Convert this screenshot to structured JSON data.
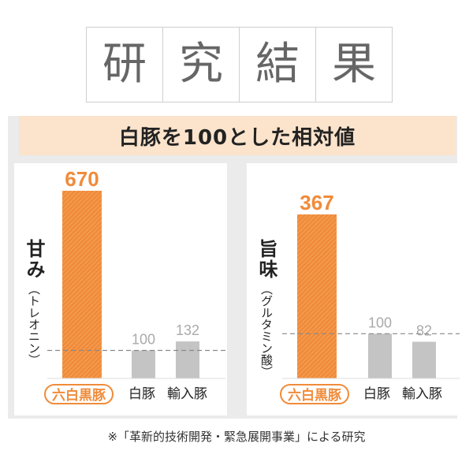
{
  "title_chars": [
    "研",
    "究",
    "結",
    "果"
  ],
  "subtitle": "白豚を100とした相対値",
  "footnote": "※「革新的技術開発・緊急展開事業」による研究",
  "colors": {
    "highlight": "#f08b3a",
    "baseline_bar": "#c4c4c4",
    "value_gray": "#aaaaaa",
    "banner_bg": "#fbe3cc"
  },
  "chart_data": [
    {
      "type": "bar",
      "title": "甘み",
      "subtitle": "（トレオニン）",
      "categories": [
        "六白黒豚",
        "白豚",
        "輸入豚"
      ],
      "values": [
        670,
        100,
        132
      ],
      "value_labels": [
        "670",
        "100",
        "132"
      ],
      "reference_line": 100,
      "highlight_index": 0
    },
    {
      "type": "bar",
      "title": "旨味",
      "subtitle": "（グルタミン酸）",
      "categories": [
        "六白黒豚",
        "白豚",
        "輸入豚"
      ],
      "values": [
        367,
        100,
        82
      ],
      "value_labels": [
        "367",
        "100",
        "82"
      ],
      "reference_line": 100,
      "highlight_index": 0
    }
  ]
}
